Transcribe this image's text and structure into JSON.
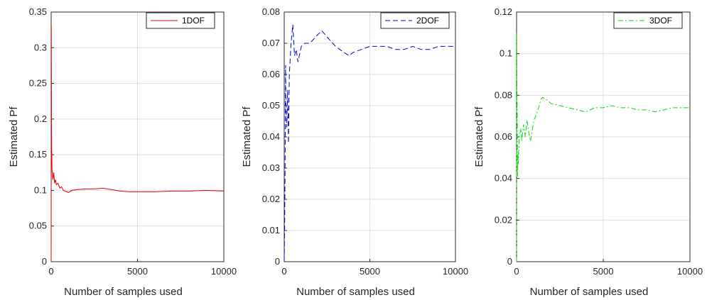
{
  "chart_data": [
    {
      "type": "line",
      "xlabel": "Number of samples used",
      "ylabel": "Estimated Pf",
      "xlim": [
        0,
        10000
      ],
      "ylim": [
        0,
        0.35
      ],
      "xticks": [
        "0",
        "5000",
        "10000"
      ],
      "yticks": [
        "0",
        "0.05",
        "0.1",
        "0.15",
        "0.2",
        "0.25",
        "0.3",
        "0.35"
      ],
      "grid": true,
      "legend": "top-right",
      "series": [
        {
          "name": "1DOF",
          "color": "#e00000",
          "line_style": "solid",
          "x": [
            1,
            10,
            20,
            30,
            50,
            80,
            100,
            150,
            200,
            250,
            300,
            400,
            500,
            600,
            700,
            800,
            1000,
            1200,
            1500,
            2000,
            2500,
            3000,
            3500,
            4000,
            4500,
            5000,
            6000,
            7000,
            8000,
            9000,
            10000
          ],
          "y": [
            0.0,
            0.33,
            0.2,
            0.16,
            0.13,
            0.12,
            0.115,
            0.125,
            0.11,
            0.115,
            0.108,
            0.11,
            0.103,
            0.105,
            0.1,
            0.099,
            0.097,
            0.1,
            0.101,
            0.102,
            0.102,
            0.103,
            0.101,
            0.099,
            0.098,
            0.098,
            0.098,
            0.099,
            0.099,
            0.1,
            0.099
          ]
        }
      ]
    },
    {
      "type": "line",
      "xlabel": "Number of samples used",
      "ylabel": "Estimated Pf",
      "xlim": [
        0,
        10000
      ],
      "ylim": [
        0,
        0.08
      ],
      "xticks": [
        "0",
        "5000",
        "10000"
      ],
      "yticks": [
        "0",
        "0.01",
        "0.02",
        "0.03",
        "0.04",
        "0.05",
        "0.06",
        "0.07",
        "0.08"
      ],
      "grid": true,
      "legend": "top-right",
      "series": [
        {
          "name": "2DOF",
          "color": "#0000dd",
          "line_style": "dashed",
          "x": [
            1,
            20,
            50,
            80,
            100,
            150,
            200,
            250,
            300,
            350,
            400,
            500,
            600,
            700,
            800,
            1000,
            1200,
            1500,
            2000,
            2200,
            2500,
            3000,
            3500,
            3800,
            4000,
            4500,
            5000,
            5500,
            6000,
            6500,
            7000,
            7500,
            8000,
            8500,
            9000,
            9500,
            10000
          ],
          "y": [
            0.0,
            0.01,
            0.028,
            0.063,
            0.05,
            0.043,
            0.055,
            0.038,
            0.06,
            0.065,
            0.07,
            0.076,
            0.066,
            0.068,
            0.064,
            0.069,
            0.07,
            0.07,
            0.073,
            0.074,
            0.072,
            0.069,
            0.067,
            0.066,
            0.067,
            0.068,
            0.069,
            0.069,
            0.069,
            0.068,
            0.068,
            0.069,
            0.068,
            0.068,
            0.069,
            0.069,
            0.069
          ]
        }
      ]
    },
    {
      "type": "line",
      "xlabel": "Number of samples used",
      "ylabel": "Estimated Pf",
      "xlim": [
        0,
        10000
      ],
      "ylim": [
        0,
        0.12
      ],
      "xticks": [
        "0",
        "5000",
        "10000"
      ],
      "yticks": [
        "0",
        "0.02",
        "0.04",
        "0.06",
        "0.08",
        "0.1",
        "0.12"
      ],
      "grid": true,
      "legend": "top-right",
      "series": [
        {
          "name": "3DOF",
          "color": "#00e000",
          "line_style": "dashdot",
          "x": [
            1,
            10,
            20,
            40,
            60,
            80,
            100,
            150,
            200,
            250,
            300,
            400,
            500,
            600,
            700,
            800,
            900,
            1000,
            1200,
            1400,
            1500,
            1700,
            2000,
            2500,
            3000,
            3500,
            4000,
            4500,
            5000,
            5500,
            6000,
            6500,
            7000,
            7500,
            8000,
            8500,
            9000,
            9500,
            10000
          ],
          "y": [
            0.0,
            0.11,
            0.085,
            0.07,
            0.041,
            0.052,
            0.047,
            0.06,
            0.062,
            0.064,
            0.058,
            0.066,
            0.06,
            0.068,
            0.062,
            0.058,
            0.063,
            0.068,
            0.072,
            0.078,
            0.079,
            0.078,
            0.076,
            0.075,
            0.074,
            0.073,
            0.072,
            0.074,
            0.074,
            0.075,
            0.074,
            0.074,
            0.073,
            0.073,
            0.072,
            0.073,
            0.074,
            0.074,
            0.074
          ]
        }
      ]
    }
  ]
}
